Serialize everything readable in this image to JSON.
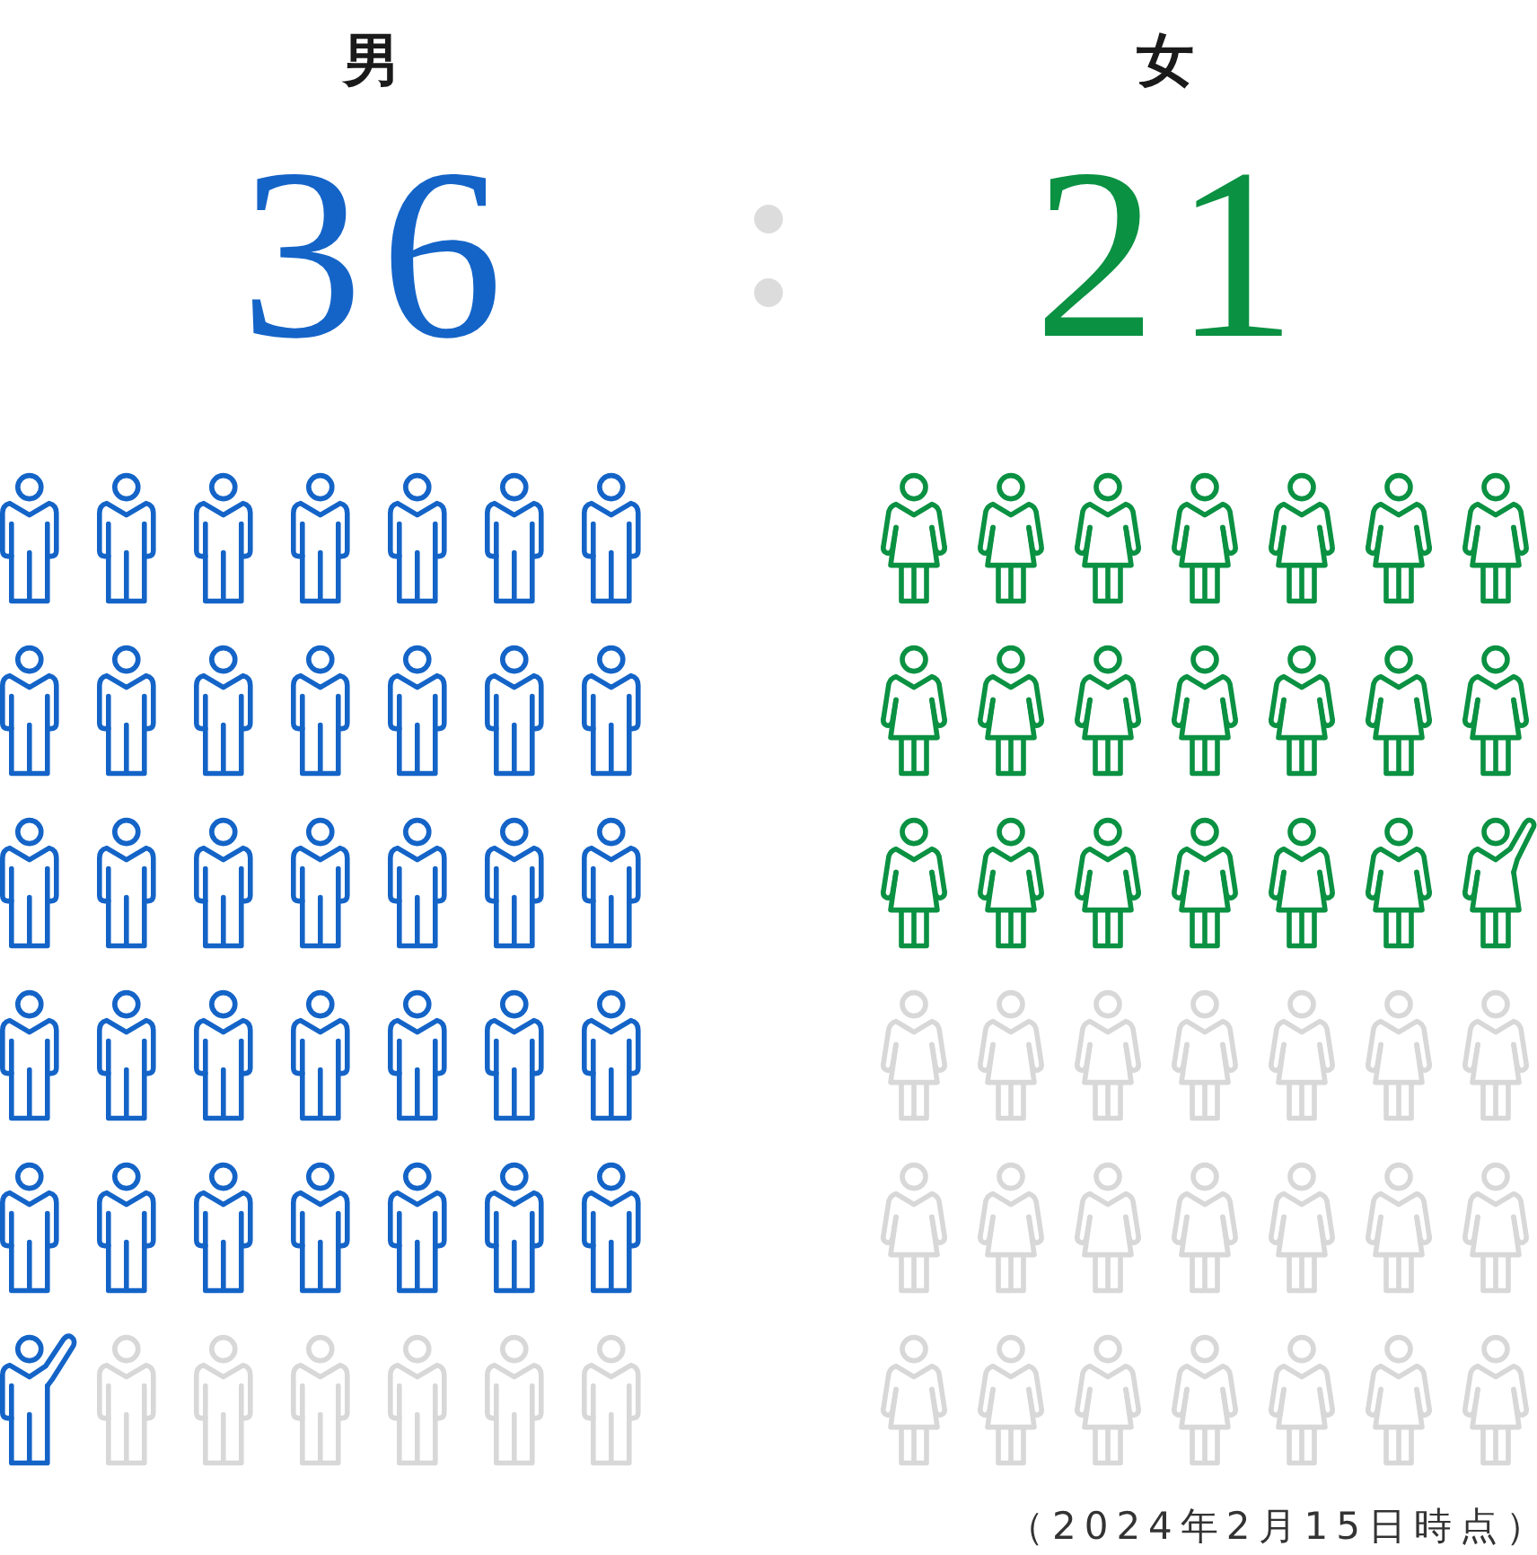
{
  "chart_data": {
    "type": "other",
    "categories": [
      "男",
      "女"
    ],
    "values": [
      36,
      21
    ],
    "colors": [
      "#1464c8",
      "#0a9142"
    ],
    "data_labels": true,
    "annotations": [
      "（2024年2月15日時点）"
    ]
  }
}
